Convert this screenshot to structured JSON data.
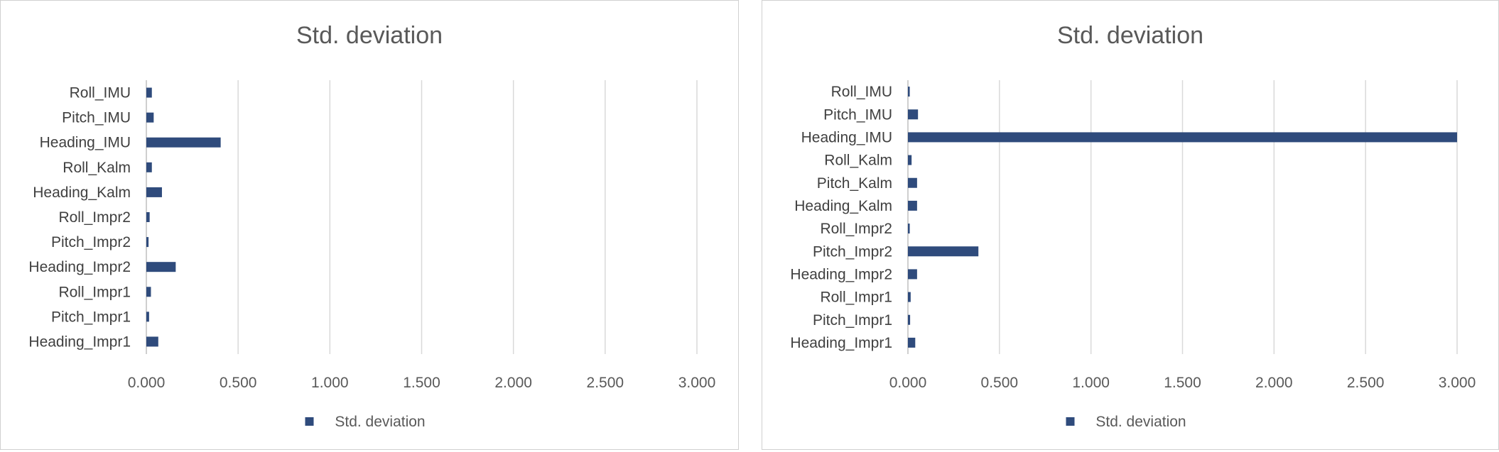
{
  "chart_data": [
    {
      "type": "bar",
      "orientation": "horizontal",
      "title": "Std. deviation",
      "categories": [
        "Roll_IMU",
        "Pitch_IMU",
        "Heading_IMU",
        "Roll_Kalm",
        "Heading_Kalm",
        "Roll_Impr2",
        "Pitch_Impr2",
        "Heading_Impr2",
        "Roll_Impr1",
        "Pitch_Impr1",
        "Heading_Impr1"
      ],
      "series": [
        {
          "name": "Std. deviation",
          "color": "#2f4b7c",
          "values": [
            0.03,
            0.04,
            0.405,
            0.03,
            0.085,
            0.018,
            0.012,
            0.16,
            0.025,
            0.015,
            0.065
          ]
        }
      ],
      "xlim": [
        0,
        3.0
      ],
      "xticks": [
        "0.000",
        "0.500",
        "1.000",
        "1.500",
        "2.000",
        "2.500",
        "3.000"
      ],
      "grid": true,
      "legend": "bottom"
    },
    {
      "type": "bar",
      "orientation": "horizontal",
      "title": "Std. deviation",
      "categories": [
        "Roll_IMU",
        "Pitch_IMU",
        "Heading_IMU",
        "Roll_Kalm",
        "Pitch_Kalm",
        "Heading_Kalm",
        "Roll_Impr2",
        "Pitch_Impr2",
        "Heading_Impr2",
        "Roll_Impr1",
        "Pitch_Impr1",
        "Heading_Impr1"
      ],
      "series": [
        {
          "name": "Std. deviation",
          "color": "#2f4b7c",
          "values": [
            0.01,
            0.055,
            3.0,
            0.02,
            0.05,
            0.05,
            0.01,
            0.385,
            0.05,
            0.015,
            0.012,
            0.04
          ]
        }
      ],
      "xlim": [
        0,
        3.0
      ],
      "xticks": [
        "0.000",
        "0.500",
        "1.000",
        "1.500",
        "2.000",
        "2.500",
        "3.000"
      ],
      "grid": true,
      "legend": "bottom"
    }
  ]
}
